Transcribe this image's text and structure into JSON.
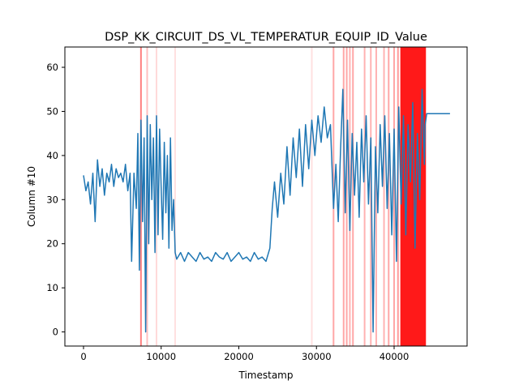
{
  "chart_data": {
    "type": "line",
    "title": "DSP_KK_CIRCUIT_DS_VL_TEMPERATUR_EQUIP_ID_Value",
    "xlabel": "Timestamp",
    "ylabel": "Column #10",
    "xlim": [
      -2400,
      49400
    ],
    "ylim": [
      -3.2,
      64.6
    ],
    "x_ticks": [
      0,
      10000,
      20000,
      30000,
      40000
    ],
    "x_tick_labels": [
      "0",
      "10000",
      "20000",
      "30000",
      "40000"
    ],
    "y_ticks": [
      0,
      10,
      20,
      30,
      40,
      50,
      60
    ],
    "y_tick_labels": [
      "0",
      "10",
      "20",
      "30",
      "40",
      "50",
      "60"
    ],
    "grid": false,
    "series": [
      {
        "color": "#1f77b4",
        "x": [
          0,
          300,
          600,
          900,
          1200,
          1500,
          1800,
          2100,
          2400,
          2700,
          3000,
          3300,
          3600,
          3900,
          4200,
          4500,
          4800,
          5100,
          5400,
          5700,
          6000,
          6200,
          6500,
          6800,
          7000,
          7200,
          7400,
          7600,
          7800,
          8000,
          8200,
          8400,
          8600,
          8800,
          9000,
          9200,
          9400,
          9600,
          9800,
          10000,
          10200,
          10400,
          10600,
          10800,
          11000,
          11200,
          11400,
          11600,
          11800,
          12000,
          12500,
          13000,
          13500,
          14000,
          14500,
          15000,
          15500,
          16000,
          16500,
          17000,
          17500,
          18000,
          18500,
          19000,
          19500,
          20000,
          20500,
          21000,
          21500,
          22000,
          22500,
          23000,
          23500,
          24000,
          24300,
          24600,
          25000,
          25400,
          25800,
          26200,
          26600,
          27000,
          27400,
          27800,
          28200,
          28600,
          29000,
          29400,
          29800,
          30200,
          30600,
          31000,
          31400,
          31800,
          32200,
          32500,
          32800,
          33100,
          33400,
          33700,
          34000,
          34300,
          34600,
          34900,
          35200,
          35500,
          35800,
          36100,
          36400,
          36700,
          37000,
          37300,
          37600,
          37900,
          38200,
          38500,
          38800,
          39100,
          39400,
          39700,
          40000,
          40300,
          40600,
          40900,
          41200,
          41500,
          41800,
          42100,
          42400,
          42700,
          43000,
          43300,
          43600,
          43900,
          44000,
          44200,
          47200
        ],
        "y": [
          35.5,
          32,
          34,
          29,
          36,
          25,
          39,
          33,
          37,
          31,
          36,
          34,
          38,
          33,
          37,
          35,
          36,
          34,
          38,
          32,
          36,
          16,
          36,
          28,
          45,
          14,
          48,
          25,
          44,
          0,
          49,
          20,
          47,
          30,
          44,
          18,
          49,
          22,
          46,
          33,
          21,
          43,
          27,
          40,
          19,
          44,
          23,
          30,
          18,
          16.5,
          18,
          16,
          18,
          17,
          16,
          18,
          16.5,
          17,
          16,
          18,
          17,
          16.5,
          18,
          16,
          17,
          18,
          16.5,
          17,
          16,
          18,
          16.5,
          17,
          16,
          19,
          28,
          34,
          26,
          36,
          29,
          42,
          31,
          44,
          35,
          46,
          33,
          47,
          37,
          48,
          40,
          49,
          43,
          51,
          44,
          47,
          28,
          38,
          25,
          41,
          55,
          27,
          48,
          23,
          45,
          31,
          43,
          26,
          46,
          34,
          49,
          29,
          44,
          0,
          42,
          27,
          47,
          33,
          49,
          28,
          45,
          22,
          46,
          16,
          51,
          29,
          49,
          22,
          47,
          34,
          52,
          19,
          45,
          30,
          55,
          38,
          47,
          49.5,
          49.5
        ],
        "values_note": ""
      }
    ],
    "highlight_bands": [
      {
        "x": 7400,
        "color": "#ff0000",
        "alpha": 0.5
      },
      {
        "x": 8200,
        "color": "#ff0000",
        "alpha": 0.25
      },
      {
        "x": 9400,
        "color": "#ff0000",
        "alpha": 0.15
      },
      {
        "x": 11800,
        "color": "#ff0000",
        "alpha": 0.12
      },
      {
        "x": 29400,
        "color": "#ff0000",
        "alpha": 0.12
      },
      {
        "x": 32200,
        "color": "#ff0000",
        "alpha": 0.35
      },
      {
        "x": 33500,
        "color": "#ff0000",
        "alpha": 0.35
      },
      {
        "x": 33900,
        "color": "#ff0000",
        "alpha": 0.35
      },
      {
        "x": 34300,
        "color": "#ff0000",
        "alpha": 0.3
      },
      {
        "x": 34700,
        "color": "#ff0000",
        "alpha": 0.35
      },
      {
        "x": 36200,
        "color": "#ff0000",
        "alpha": 0.3
      },
      {
        "x": 37000,
        "color": "#ff0000",
        "alpha": 0.3
      },
      {
        "x": 37700,
        "color": "#ff0000",
        "alpha": 0.3
      },
      {
        "x": 38700,
        "color": "#ff0000",
        "alpha": 0.3
      },
      {
        "x": 39300,
        "color": "#ff0000",
        "alpha": 0.35
      },
      {
        "x": 40000,
        "color": "#ff0000",
        "alpha": 0.35
      },
      {
        "x": 40500,
        "color": "#ff0000",
        "alpha": 0.4
      }
    ],
    "highlight_span": {
      "x0": 40800,
      "x1": 44100,
      "color": "#ff0000",
      "alpha": 0.9
    }
  }
}
